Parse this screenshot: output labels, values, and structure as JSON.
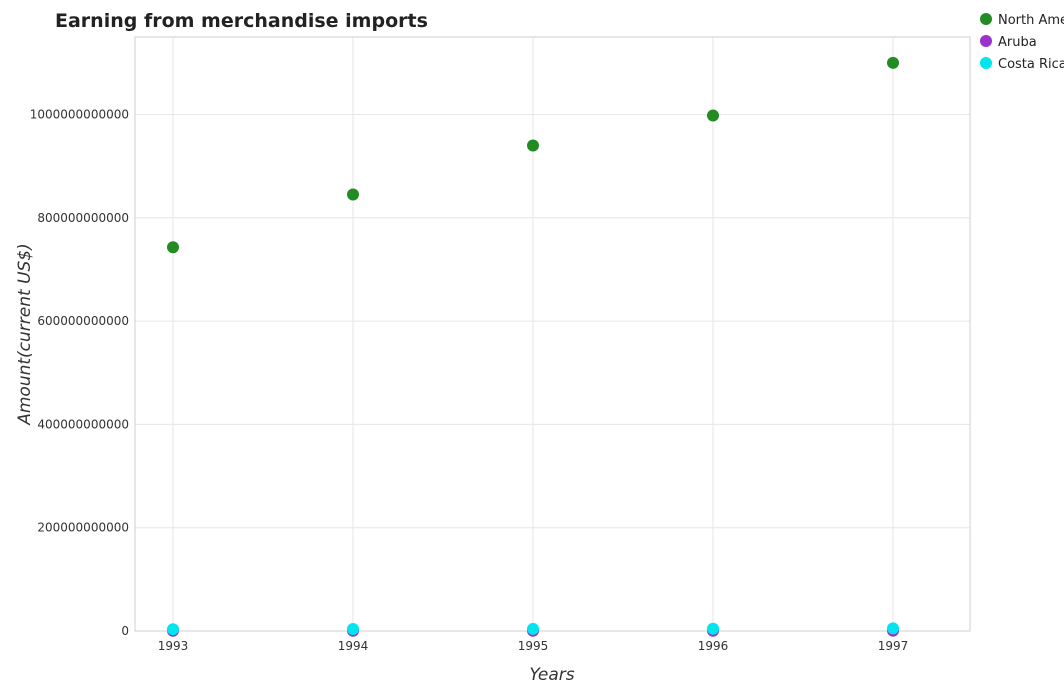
{
  "chart_data": {
    "type": "scatter",
    "title": "Earning from merchandise imports",
    "xlabel": "Years",
    "ylabel": "Amount(current US$)",
    "categories": [
      "1993",
      "1994",
      "1995",
      "1996",
      "1997"
    ],
    "ylim": [
      0,
      1150000000000
    ],
    "yticks": [
      0,
      200000000000,
      400000000000,
      600000000000,
      800000000000,
      1000000000000
    ],
    "ytick_labels": [
      "0",
      "200000000000",
      "400000000000",
      "600000000000",
      "800000000000",
      "1000000000000"
    ],
    "grid": true,
    "legend_position": "top-right",
    "series": [
      {
        "name": "North America",
        "color": "#228b22",
        "values": [
          743000000000,
          845000000000,
          940000000000,
          998000000000,
          1100000000000
        ]
      },
      {
        "name": "Aruba",
        "color": "#9932cc",
        "values": [
          470000000,
          520000000,
          580000000,
          590000000,
          640000000
        ]
      },
      {
        "name": "Costa Rica",
        "color": "#00e5ee",
        "values": [
          3500000000,
          3800000000,
          4000000000,
          4300000000,
          5000000000
        ]
      }
    ]
  }
}
